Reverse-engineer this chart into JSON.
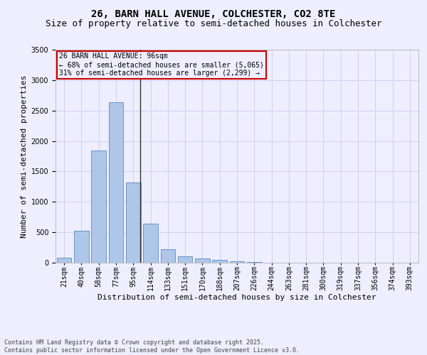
{
  "title": "26, BARN HALL AVENUE, COLCHESTER, CO2 8TE",
  "subtitle": "Size of property relative to semi-detached houses in Colchester",
  "xlabel": "Distribution of semi-detached houses by size in Colchester",
  "ylabel": "Number of semi-detached properties",
  "annotation_line1": "26 BARN HALL AVENUE: 96sqm",
  "annotation_line2": "← 68% of semi-detached houses are smaller (5,065)",
  "annotation_line3": "31% of semi-detached houses are larger (2,299) →",
  "footer_line1": "Contains HM Land Registry data © Crown copyright and database right 2025.",
  "footer_line2": "Contains public sector information licensed under the Open Government Licence v3.0.",
  "categories": [
    "21sqm",
    "40sqm",
    "58sqm",
    "77sqm",
    "95sqm",
    "114sqm",
    "133sqm",
    "151sqm",
    "170sqm",
    "188sqm",
    "207sqm",
    "226sqm",
    "244sqm",
    "263sqm",
    "281sqm",
    "300sqm",
    "319sqm",
    "337sqm",
    "356sqm",
    "374sqm",
    "393sqm"
  ],
  "bar_values": [
    80,
    530,
    1840,
    2640,
    1320,
    640,
    220,
    100,
    70,
    45,
    20,
    10,
    5,
    2,
    1,
    0,
    0,
    0,
    0,
    0,
    0
  ],
  "bar_color": "#aec6e8",
  "bar_edge_color": "#6699cc",
  "property_line_x": 4.42,
  "property_line_color": "#333333",
  "annotation_box_color": "#cc0000",
  "ylim_max": 3500,
  "yticks": [
    0,
    500,
    1000,
    1500,
    2000,
    2500,
    3000,
    3500
  ],
  "grid_color": "#d0d0f0",
  "background_color": "#eeeeff",
  "title_fontsize": 10,
  "subtitle_fontsize": 9,
  "axis_label_fontsize": 8,
  "tick_fontsize": 7,
  "annotation_fontsize": 7,
  "footer_fontsize": 6
}
